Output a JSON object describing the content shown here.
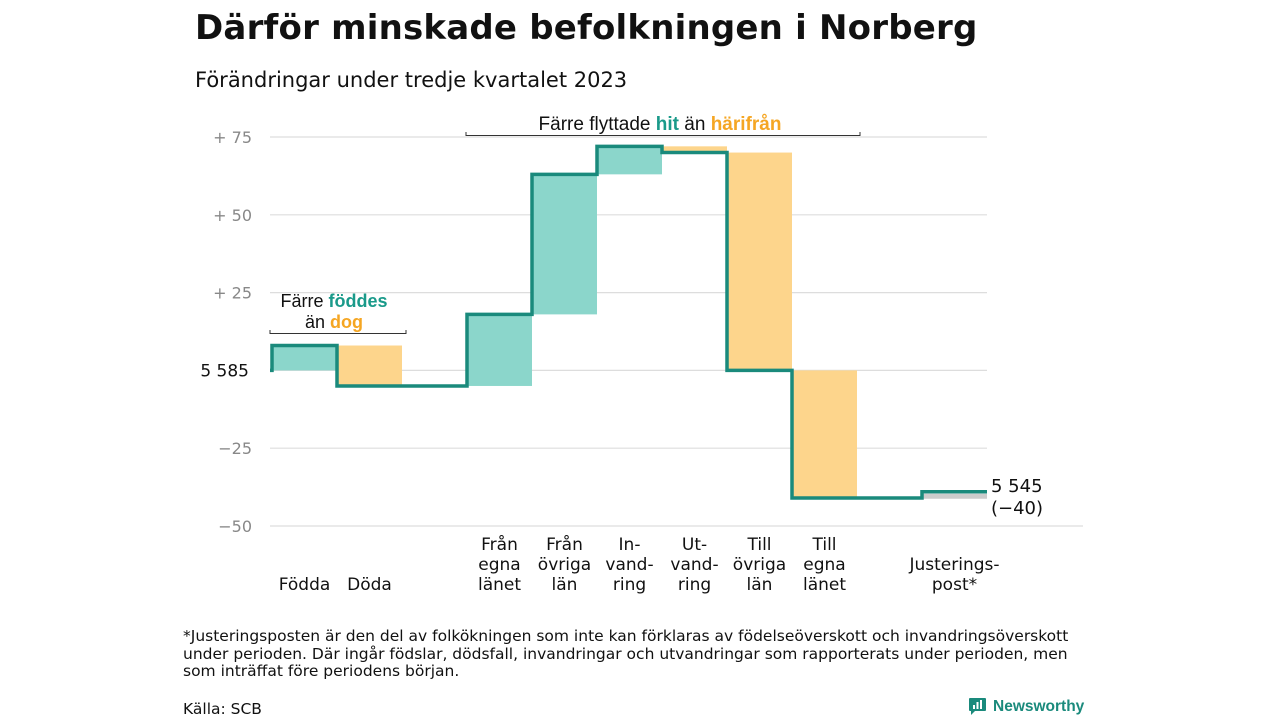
{
  "chart_data": {
    "type": "waterfall",
    "title": "Därför minskade befolkningen i Norberg",
    "subtitle": "Förändringar under tredje kvartalet 2023",
    "baseline": 5585,
    "ylim": [
      -50,
      75
    ],
    "yticks": [
      {
        "value": 75,
        "label": "+  75"
      },
      {
        "value": 50,
        "label": "+  50"
      },
      {
        "value": 25,
        "label": "+  25"
      },
      {
        "value": 0,
        "label": "5  585"
      },
      {
        "value": -25,
        "label": "−25"
      },
      {
        "value": -50,
        "label": "−50"
      }
    ],
    "categories": [
      {
        "label": "Födda",
        "lines": [
          "Födda"
        ],
        "value": 8
      },
      {
        "label": "Döda",
        "lines": [
          "Döda"
        ],
        "value": -13
      },
      {
        "label": "",
        "lines": [],
        "value": 0
      },
      {
        "label": "Från egna länet",
        "lines": [
          "Från",
          "egna",
          "länet"
        ],
        "value": 23
      },
      {
        "label": "Från övriga län",
        "lines": [
          "Från",
          "övriga",
          "län"
        ],
        "value": 45
      },
      {
        "label": "In-vandring",
        "lines": [
          "In-",
          "vand-",
          "ring"
        ],
        "value": 9
      },
      {
        "label": "Ut-vandring",
        "lines": [
          "Ut-",
          "vand-",
          "ring"
        ],
        "value": -2
      },
      {
        "label": "Till övriga län",
        "lines": [
          "Till",
          "övriga",
          "län"
        ],
        "value": -70
      },
      {
        "label": "Till egna länet",
        "lines": [
          "Till",
          "egna",
          "länet"
        ],
        "value": -41
      },
      {
        "label": "",
        "lines": [],
        "value": 0
      },
      {
        "label": "Justerings-post*",
        "lines": [
          "Justerings-",
          "post*"
        ],
        "value": 2
      }
    ],
    "colors": {
      "positive": "#8bd6cb",
      "negative": "#fdd58c",
      "adjustment": "#cccccc",
      "line": "#1a8a7c",
      "accent_teal": "#1a9a8a",
      "accent_orange": "#f5a623",
      "grid": "#dddddd",
      "tick": "#888888"
    },
    "end_label": {
      "line1": "5 545",
      "line2": "(−40)"
    },
    "annotations": {
      "births": {
        "part1": "Färre ",
        "hl1": "föddes",
        "part2": "än ",
        "hl2": "dog"
      },
      "moves": {
        "part1": "Färre flyttade ",
        "hl1": "hit",
        "part2": " än ",
        "hl2": "härifrån"
      }
    }
  },
  "footnote": "*Justeringsposten är den del av folkökningen som inte kan förklaras av födelseöverskott och invandringsöverskott under perioden. Där ingår födslar, dödsfall, invandringar och utvandringar som rapporterats under perioden, men som inträffat före periodens början.",
  "source": "Källa: SCB",
  "brand": {
    "name": "Newsworthy",
    "icon": "bar-chart-icon"
  }
}
